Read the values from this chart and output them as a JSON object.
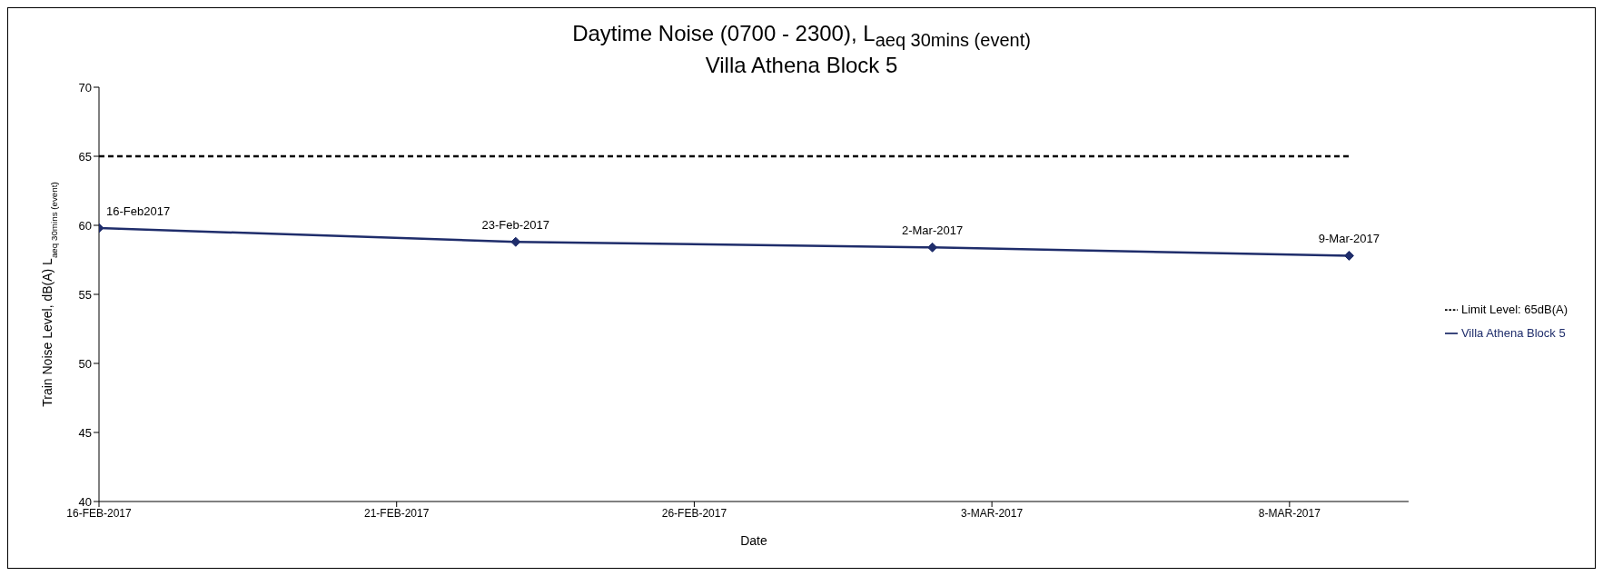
{
  "chart_data": {
    "type": "line",
    "title": "Daytime Noise (0700 - 2300), L$_{aeq 30mins (event)}$",
    "subtitle": "Villa Athena Block 5",
    "xlabel": "Date",
    "ylabel": "Train Noise Level, dB(A) L$_{aeq 30mins (event)}$",
    "series": [
      {
        "name": "Villa Athena Block 5",
        "color": "#1f2d6b",
        "x": [
          "2017-02-16",
          "2017-02-23",
          "2017-03-02",
          "2017-03-09"
        ],
        "values": [
          59.8,
          58.8,
          58.4,
          57.8
        ],
        "marker": "diamond",
        "line_style": "solid"
      },
      {
        "name": "Limit Level: 65dB(A)",
        "color": "#000000",
        "x": [
          "2017-02-16",
          "2017-03-09"
        ],
        "values": [
          65,
          65
        ],
        "marker": "none",
        "line_style": "dashed"
      }
    ],
    "annotations": [
      {
        "text": "16-Feb2017",
        "x": "2017-02-16",
        "y": 59.8
      },
      {
        "text": "23-Feb-2017",
        "x": "2017-02-23",
        "y": 58.8
      },
      {
        "text": "2-Mar-2017",
        "x": "2017-03-02",
        "y": 58.4
      },
      {
        "text": "9-Mar-2017",
        "x": "2017-03-09",
        "y": 57.8
      }
    ],
    "xlim": [
      "2017-02-16",
      "2017-03-10"
    ],
    "xticks": [
      {
        "value": "2017-02-16",
        "label": "16-FEB-2017"
      },
      {
        "value": "2017-02-21",
        "label": "21-FEB-2017"
      },
      {
        "value": "2017-02-26",
        "label": "26-FEB-2017"
      },
      {
        "value": "2017-03-03",
        "label": "3-MAR-2017"
      },
      {
        "value": "2017-03-08",
        "label": "8-MAR-2017"
      }
    ],
    "ylim": [
      40,
      70
    ],
    "yticks": [
      40,
      45,
      50,
      55,
      60,
      65,
      70
    ],
    "grid": false,
    "legend": "right"
  }
}
